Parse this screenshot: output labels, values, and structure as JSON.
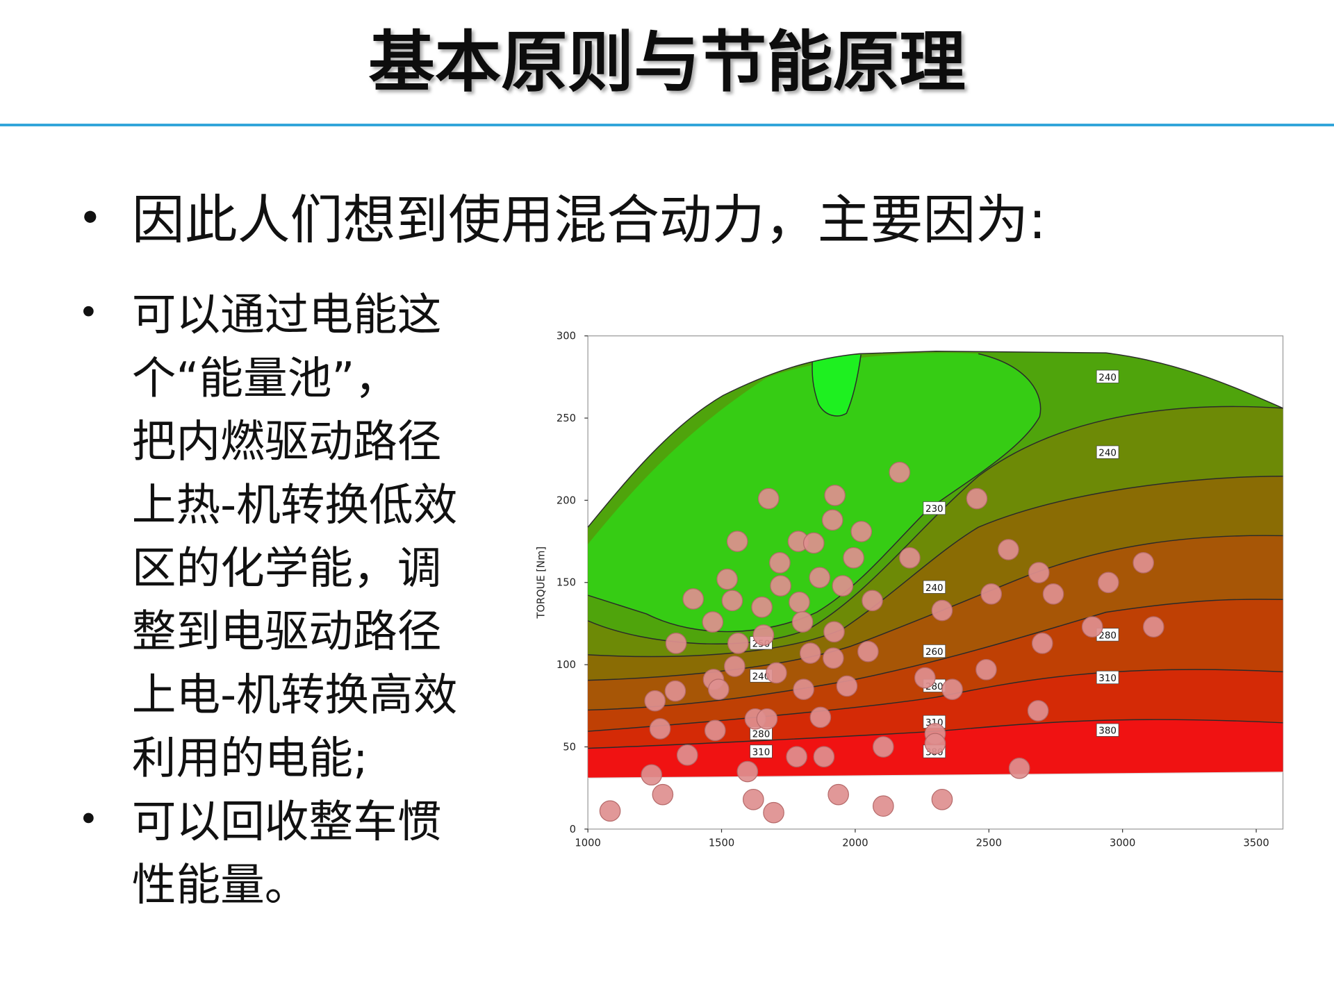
{
  "title": "基本原则与节能原理",
  "bullets": [
    {
      "text": "因此人们想到使用混合动力，主要因为:"
    }
  ],
  "sub_bullets": [
    {
      "lines": [
        "可以通过电能这",
        "个“能量池”，",
        "把内燃驱动路径",
        "上热-机转换低效",
        "区的化学能，调",
        "整到电驱动路径",
        "上电-机转换高效",
        "利用的电能;"
      ]
    },
    {
      "lines": [
        "可以回收整车惯",
        "性能量。"
      ]
    }
  ],
  "chart_data": {
    "type": "scatter",
    "y_label": "TORQUE [Nm]",
    "xlim": [
      1000,
      3600
    ],
    "ylim": [
      0,
      300
    ],
    "xticks": [
      1000,
      1500,
      2000,
      2500,
      3000,
      3500
    ],
    "yticks": [
      0,
      50,
      100,
      150,
      200,
      250,
      300
    ],
    "color": "#de8f8f",
    "x": [
      1083,
      1238,
      1280,
      1251,
      1270,
      1327,
      1330,
      1372,
      1394,
      1467,
      1476,
      1470,
      1489,
      1521,
      1540,
      1549,
      1562,
      1559,
      1597,
      1619,
      1626,
      1651,
      1657,
      1670,
      1676,
      1695,
      1705,
      1721,
      1718,
      1781,
      1787,
      1791,
      1807,
      1803,
      1832,
      1845,
      1870,
      1867,
      1883,
      1918,
      1921,
      1915,
      1924,
      1937,
      1953,
      1969,
      1994,
      2023,
      2048,
      2064,
      2105,
      2105,
      2166,
      2204,
      2261,
      2299,
      2299,
      2325,
      2325,
      2363,
      2455,
      2490,
      2509,
      2573,
      2614,
      2684,
      2687,
      2700,
      2741,
      2887,
      2947,
      3078,
      3116
    ],
    "values": [
      11,
      33,
      21,
      78,
      61,
      84,
      113,
      45,
      140,
      126,
      60,
      91,
      85,
      152,
      139,
      99,
      113,
      175,
      35,
      18,
      67,
      135,
      118,
      67,
      201,
      10,
      95,
      148,
      162,
      44,
      175,
      138,
      85,
      126,
      107,
      174,
      68,
      153,
      44,
      104,
      120,
      188,
      203,
      21,
      148,
      87,
      165,
      181,
      108,
      139,
      50,
      14,
      217,
      165,
      92,
      58,
      52,
      133,
      18,
      85,
      201,
      97,
      143,
      170,
      37,
      72,
      156,
      113,
      143,
      123,
      150,
      162,
      123
    ],
    "annotations": [
      {
        "text": "240",
        "x": 2944,
        "y": 275
      },
      {
        "text": "240",
        "x": 2944,
        "y": 229
      },
      {
        "text": "230",
        "x": 2296,
        "y": 195
      },
      {
        "text": "240",
        "x": 2296,
        "y": 147
      },
      {
        "text": "250",
        "x": 1648,
        "y": 113
      },
      {
        "text": "260",
        "x": 2296,
        "y": 108
      },
      {
        "text": "280",
        "x": 2944,
        "y": 118
      },
      {
        "text": "240",
        "x": 1648,
        "y": 93
      },
      {
        "text": "280",
        "x": 2296,
        "y": 87
      },
      {
        "text": "310",
        "x": 2944,
        "y": 92
      },
      {
        "text": "280",
        "x": 1648,
        "y": 58
      },
      {
        "text": "310",
        "x": 2296,
        "y": 65
      },
      {
        "text": "380",
        "x": 2944,
        "y": 60
      },
      {
        "text": "310",
        "x": 1648,
        "y": 47
      },
      {
        "text": "380",
        "x": 2296,
        "y": 47
      }
    ]
  }
}
